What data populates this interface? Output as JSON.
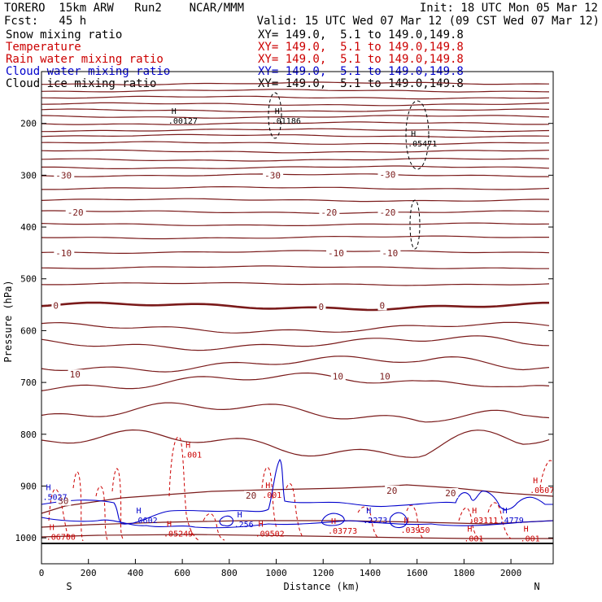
{
  "header": {
    "model": "TORERO  15km ARW   Run2    NCAR/MMM",
    "init": "Init: 18 UTC Mon 05 Mar 12",
    "fcst": "Fcst:   45 h",
    "valid": "Valid: 15 UTC Wed 07 Mar 12 (09 CST Wed 07 Mar 12)"
  },
  "legend": [
    {
      "name": "Snow mixing ratio",
      "color": "#000000",
      "xy": "XY= 149.0,  5.1 to 149.0,149.8"
    },
    {
      "name": "Temperature",
      "color": "#cc0000",
      "xy": "XY= 149.0,  5.1 to 149.0,149.8"
    },
    {
      "name": "Rain water mixing ratio",
      "color": "#cc0000",
      "xy": "XY= 149.0,  5.1 to 149.0,149.8"
    },
    {
      "name": "Cloud water mixing ratio",
      "color": "#0000cc",
      "xy": "XY= 149.0,  5.1 to 149.0,149.8"
    },
    {
      "name": "Cloud ice mixing ratio",
      "color": "#000000",
      "xy": "XY= 149.0,  5.1 to 149.0,149.8"
    }
  ],
  "chart_data": {
    "type": "contour cross-section",
    "xlabel": "Distance (km)",
    "ylabel": "Pressure (hPa)",
    "xlim": [
      0,
      2180
    ],
    "ylim": [
      1050,
      100
    ],
    "x_ticks": [
      0,
      200,
      400,
      600,
      800,
      1000,
      1200,
      1400,
      1600,
      1800,
      2000
    ],
    "y_ticks": [
      200,
      300,
      400,
      500,
      600,
      700,
      800,
      900,
      1000
    ],
    "endpoints": {
      "left": "S",
      "right": "N"
    },
    "colors": {
      "temperature": "#7a1a1a",
      "rain": "#cc0000",
      "cloud_water": "#0000cc",
      "ice": "#000000"
    },
    "temperature_isotherm_pressures": [
      123,
      137,
      150,
      163,
      175,
      187,
      200,
      213,
      224,
      238,
      254,
      270,
      285,
      300,
      325,
      348,
      371,
      395,
      420,
      448,
      478,
      510,
      553,
      595,
      625,
      665,
      700,
      760,
      820
    ],
    "freezing_level": 553,
    "temperature_labels": [
      {
        "text": "-30",
        "x": 60,
        "p": 302
      },
      {
        "text": "-30",
        "x": 950,
        "p": 302
      },
      {
        "text": "-30",
        "x": 1440,
        "p": 300
      },
      {
        "text": "-20",
        "x": 110,
        "p": 373
      },
      {
        "text": "-20",
        "x": 1190,
        "p": 373
      },
      {
        "text": "-20",
        "x": 1440,
        "p": 373
      },
      {
        "text": "-10",
        "x": 60,
        "p": 452
      },
      {
        "text": "-10",
        "x": 1220,
        "p": 452
      },
      {
        "text": "-10",
        "x": 1450,
        "p": 452
      },
      {
        "text": "0",
        "x": 50,
        "p": 553
      },
      {
        "text": "0",
        "x": 1180,
        "p": 555
      },
      {
        "text": "0",
        "x": 1440,
        "p": 553
      },
      {
        "text": "10",
        "x": 120,
        "p": 686
      },
      {
        "text": "10",
        "x": 1240,
        "p": 690
      },
      {
        "text": "10",
        "x": 1440,
        "p": 690
      },
      {
        "text": "20",
        "x": 870,
        "p": 920
      },
      {
        "text": "20",
        "x": 1470,
        "p": 910
      },
      {
        "text": "20",
        "x": 1720,
        "p": 915
      },
      {
        "text": "30",
        "x": 70,
        "p": 930
      }
    ],
    "maxima": [
      {
        "text": ".00127",
        "x": 540,
        "p": 196,
        "color": "#000000"
      },
      {
        "text": ".01186",
        "x": 980,
        "p": 196,
        "color": "#000000"
      },
      {
        "text": ".05471",
        "x": 1560,
        "p": 240,
        "color": "#000000"
      },
      {
        "text": ".001",
        "x": 600,
        "p": 840,
        "color": "#cc0000"
      },
      {
        "text": ".001",
        "x": 940,
        "p": 918,
        "color": "#cc0000"
      },
      {
        "text": ".001",
        "x": 1800,
        "p": 1002,
        "color": "#cc0000"
      },
      {
        "text": ".001",
        "x": 2040,
        "p": 1002,
        "color": "#cc0000"
      },
      {
        "text": ".0607",
        "x": 2080,
        "p": 909,
        "color": "#cc0000"
      },
      {
        "text": ".06700",
        "x": 20,
        "p": 999,
        "color": "#cc0000"
      },
      {
        "text": ".05249",
        "x": 520,
        "p": 993,
        "color": "#cc0000"
      },
      {
        "text": ".09502",
        "x": 910,
        "p": 993,
        "color": "#cc0000"
      },
      {
        "text": ".03773",
        "x": 1220,
        "p": 987,
        "color": "#cc0000"
      },
      {
        "text": ".03950",
        "x": 1530,
        "p": 986,
        "color": "#cc0000"
      },
      {
        "text": ".03111",
        "x": 1820,
        "p": 967,
        "color": "#cc0000"
      },
      {
        "text": ".5027",
        "x": 5,
        "p": 922,
        "color": "#0000cc"
      },
      {
        "text": ".0602",
        "x": 390,
        "p": 967,
        "color": "#0000cc"
      },
      {
        "text": ".256",
        "x": 820,
        "p": 975,
        "color": "#0000cc"
      },
      {
        "text": ".2273",
        "x": 1370,
        "p": 967,
        "color": "#0000cc"
      },
      {
        "text": ".4779",
        "x": 1950,
        "p": 967,
        "color": "#0000cc"
      }
    ]
  }
}
